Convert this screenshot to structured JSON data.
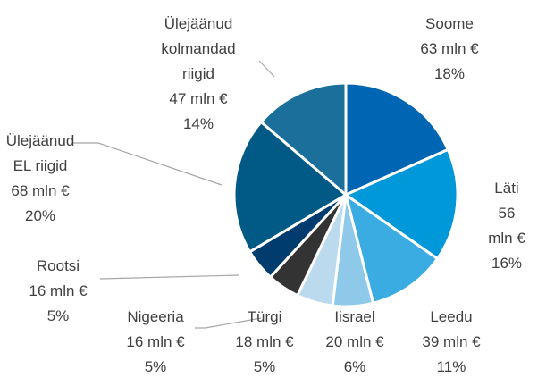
{
  "chart_data": {
    "type": "pie",
    "categories": [
      "Soome",
      "Läti",
      "Leedu",
      "Iisrael",
      "Türgi",
      "Nigeeria",
      "Rootsi",
      "Ülejäänud\nEL riigid",
      "Ülejäänud\nkolmandad\nriigid"
    ],
    "values": [
      63,
      56,
      39,
      20,
      18,
      16,
      16,
      68,
      47
    ],
    "value_labels": [
      "63 mln €",
      "56 mln €",
      "39 mln €",
      "20 mln €",
      "18 mln €",
      "16 mln €",
      "16 mln €",
      "68 mln €",
      "47 mln €"
    ],
    "percentages": [
      18,
      16,
      11,
      6,
      5,
      5,
      5,
      20,
      14
    ],
    "percentage_labels": [
      "18%",
      "16%",
      "11%",
      "6%",
      "5%",
      "5%",
      "5%",
      "20%",
      "14%"
    ],
    "colors": [
      "#0066b3",
      "#0098d9",
      "#3aace2",
      "#8ec9ea",
      "#bcdaee",
      "#333333",
      "#003c6e",
      "#005a85",
      "#1a709b"
    ]
  }
}
